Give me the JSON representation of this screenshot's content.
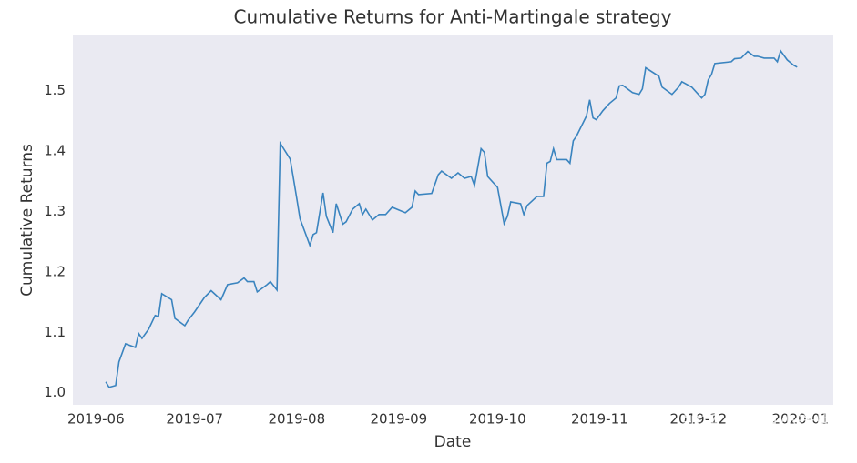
{
  "chart_data": {
    "type": "line",
    "title": "Cumulative Returns for Anti-Martingale strategy",
    "x_label": "Date",
    "y_label": "Cumulative Returns",
    "watermark": "知乎 @一只小迷糊",
    "x": [
      "2019-06-04",
      "2019-06-05",
      "2019-06-07",
      "2019-06-08",
      "2019-06-10",
      "2019-06-13",
      "2019-06-14",
      "2019-06-15",
      "2019-06-17",
      "2019-06-19",
      "2019-06-20",
      "2019-06-21",
      "2019-06-24",
      "2019-06-25",
      "2019-06-28",
      "2019-06-29",
      "2019-07-01",
      "2019-07-04",
      "2019-07-06",
      "2019-07-09",
      "2019-07-11",
      "2019-07-14",
      "2019-07-16",
      "2019-07-17",
      "2019-07-19",
      "2019-07-20",
      "2019-07-23",
      "2019-07-24",
      "2019-07-26",
      "2019-07-27",
      "2019-07-30",
      "2019-07-31",
      "2019-08-01",
      "2019-08-02",
      "2019-08-05",
      "2019-08-06",
      "2019-08-07",
      "2019-08-09",
      "2019-08-10",
      "2019-08-12",
      "2019-08-13",
      "2019-08-15",
      "2019-08-16",
      "2019-08-18",
      "2019-08-20",
      "2019-08-21",
      "2019-08-22",
      "2019-08-23",
      "2019-08-24",
      "2019-08-26",
      "2019-08-28",
      "2019-08-30",
      "2019-09-03",
      "2019-09-05",
      "2019-09-06",
      "2019-09-07",
      "2019-09-11",
      "2019-09-13",
      "2019-09-14",
      "2019-09-17",
      "2019-09-19",
      "2019-09-21",
      "2019-09-23",
      "2019-09-24",
      "2019-09-26",
      "2019-09-27",
      "2019-09-28",
      "2019-10-01",
      "2019-10-03",
      "2019-10-04",
      "2019-10-05",
      "2019-10-08",
      "2019-10-09",
      "2019-10-10",
      "2019-10-13",
      "2019-10-15",
      "2019-10-16",
      "2019-10-17",
      "2019-10-18",
      "2019-10-19",
      "2019-10-22",
      "2019-10-23",
      "2019-10-24",
      "2019-10-25",
      "2019-10-28",
      "2019-10-29",
      "2019-10-30",
      "2019-10-31",
      "2019-11-02",
      "2019-11-04",
      "2019-11-06",
      "2019-11-07",
      "2019-11-08",
      "2019-11-11",
      "2019-11-13",
      "2019-11-14",
      "2019-11-15",
      "2019-11-19",
      "2019-11-20",
      "2019-11-23",
      "2019-11-25",
      "2019-11-26",
      "2019-11-29",
      "2019-12-02",
      "2019-12-03",
      "2019-12-04",
      "2019-12-05",
      "2019-12-06",
      "2019-12-11",
      "2019-12-12",
      "2019-12-14",
      "2019-12-16",
      "2019-12-18",
      "2019-12-19",
      "2019-12-21",
      "2019-12-24",
      "2019-12-25",
      "2019-12-26",
      "2019-12-28",
      "2019-12-30",
      "2019-12-31"
    ],
    "series": [
      {
        "color": "#3a84bf",
        "values": [
          1.018,
          1.009,
          1.012,
          1.051,
          1.081,
          1.075,
          1.098,
          1.09,
          1.105,
          1.128,
          1.126,
          1.164,
          1.154,
          1.123,
          1.111,
          1.12,
          1.134,
          1.158,
          1.169,
          1.154,
          1.179,
          1.182,
          1.19,
          1.184,
          1.184,
          1.167,
          1.179,
          1.184,
          1.17,
          1.413,
          1.387,
          1.355,
          1.322,
          1.288,
          1.244,
          1.262,
          1.265,
          1.331,
          1.292,
          1.265,
          1.313,
          1.279,
          1.283,
          1.304,
          1.313,
          1.295,
          1.304,
          1.295,
          1.286,
          1.295,
          1.295,
          1.307,
          1.298,
          1.307,
          1.334,
          1.328,
          1.33,
          1.361,
          1.367,
          1.355,
          1.364,
          1.355,
          1.358,
          1.343,
          1.404,
          1.398,
          1.358,
          1.34,
          1.28,
          1.292,
          1.316,
          1.313,
          1.295,
          1.31,
          1.325,
          1.325,
          1.38,
          1.383,
          1.404,
          1.386,
          1.386,
          1.38,
          1.417,
          1.425,
          1.458,
          1.485,
          1.455,
          1.452,
          1.467,
          1.479,
          1.488,
          1.508,
          1.509,
          1.497,
          1.494,
          1.503,
          1.538,
          1.524,
          1.506,
          1.494,
          1.506,
          1.515,
          1.506,
          1.488,
          1.494,
          1.518,
          1.527,
          1.545,
          1.548,
          1.553,
          1.554,
          1.565,
          1.557,
          1.557,
          1.554,
          1.554,
          1.548,
          1.566,
          1.551,
          1.542,
          1.539
        ]
      }
    ],
    "xlim": [
      "2019-05-25",
      "2020-01-11"
    ],
    "xticks": [
      {
        "value": "2019-06-01",
        "label": "2019-06"
      },
      {
        "value": "2019-07-01",
        "label": "2019-07"
      },
      {
        "value": "2019-08-01",
        "label": "2019-08"
      },
      {
        "value": "2019-09-01",
        "label": "2019-09"
      },
      {
        "value": "2019-10-01",
        "label": "2019-10"
      },
      {
        "value": "2019-11-01",
        "label": "2019-11"
      },
      {
        "value": "2019-12-01",
        "label": "2019-12"
      },
      {
        "value": "2020-01-01",
        "label": "2020-01"
      }
    ],
    "ylim": [
      0.98,
      1.593
    ],
    "yticks": [
      {
        "value": 1.0,
        "label": "1.0"
      },
      1.1,
      1.2,
      1.3,
      1.4,
      1.5
    ],
    "grid": false,
    "background": "#eaeaf2"
  }
}
